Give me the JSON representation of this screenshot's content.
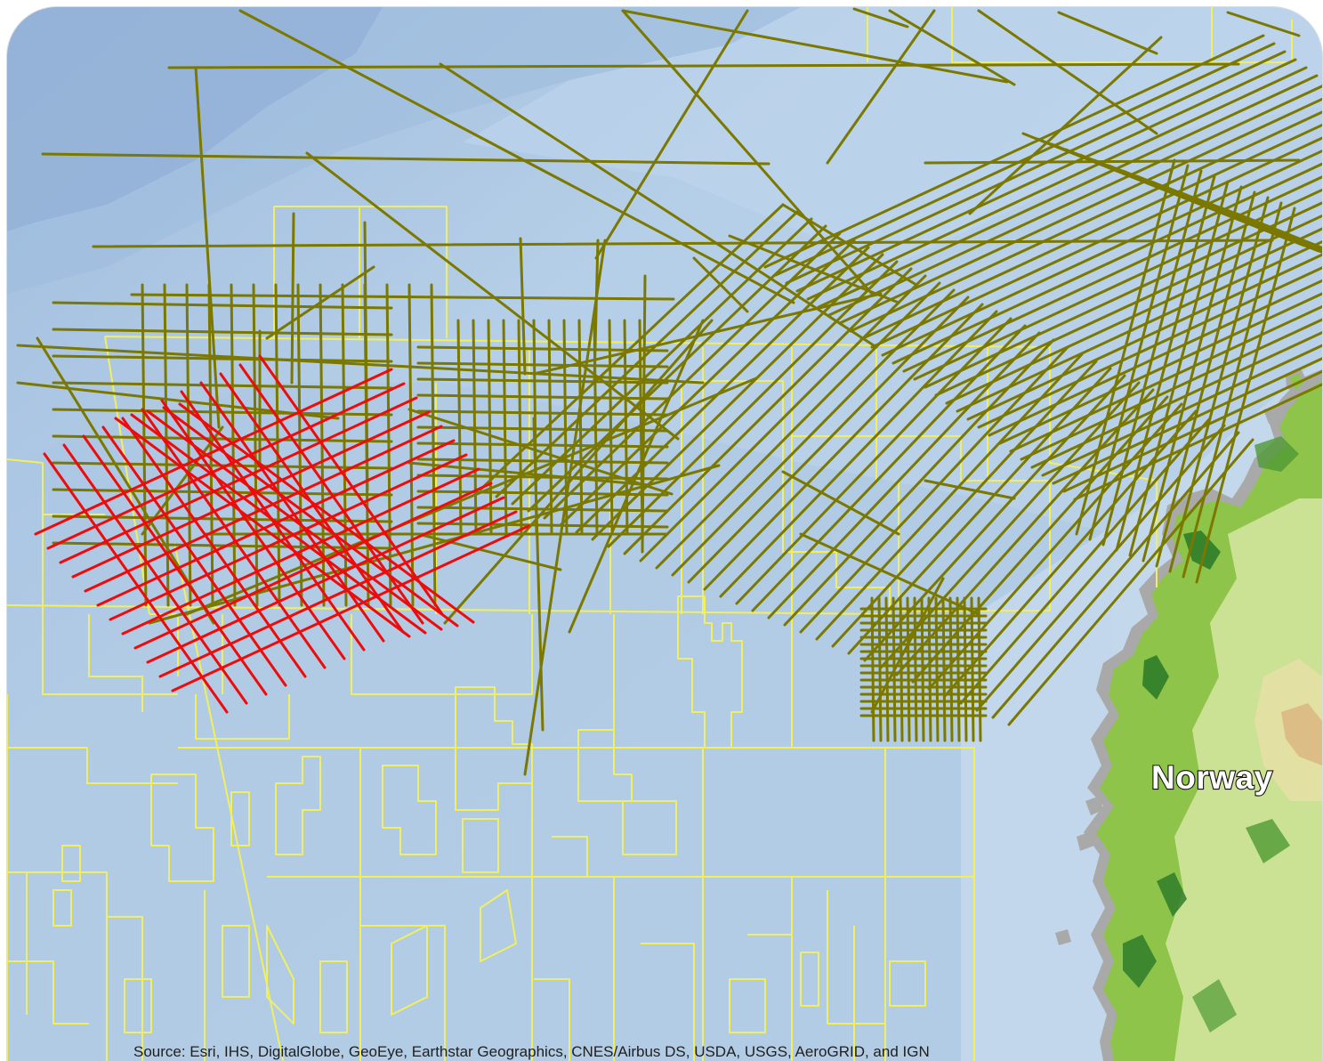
{
  "map": {
    "country_label": "Norway",
    "attribution": "Source: Esri, IHS, DigitalGlobe, GeoEye, Earthstar Geographics, CNES/Airbus DS, USDA, USGS, AeroGRID, and IGN",
    "basemap": "Esri World Imagery / ocean basemap with terrain relief on land"
  },
  "layers": [
    {
      "name": "seismic-survey-lines-olive",
      "color": "#7b7800"
    },
    {
      "name": "seismic-survey-lines-highlighted",
      "color": "#ee0b0b"
    },
    {
      "name": "license-block-boundaries",
      "color": "#f2f05a"
    }
  ],
  "colors": {
    "sea_deep": "#8fb0d6",
    "sea": "#b9d1e7",
    "sea_shallow": "#c5dbee",
    "land_green": "#8fc44a",
    "land_dark_green": "#2f7d2a",
    "land_light": "#d9e59a"
  }
}
